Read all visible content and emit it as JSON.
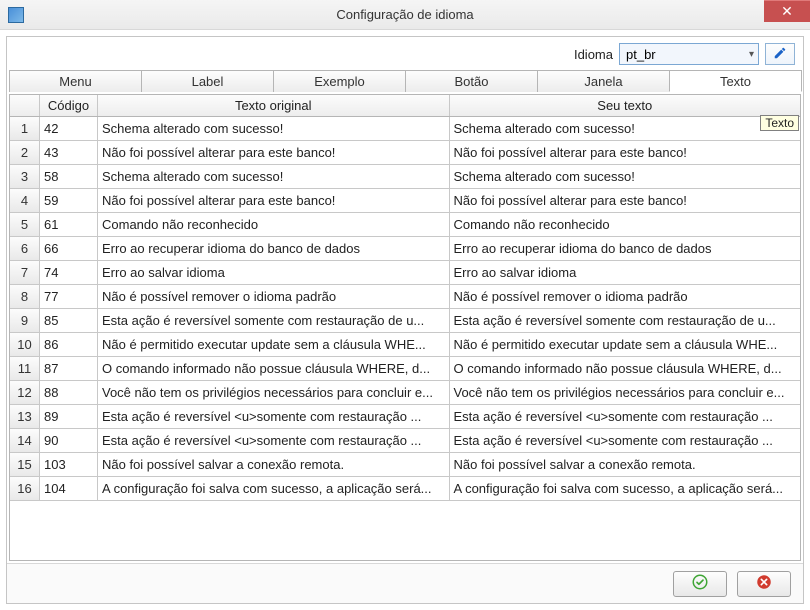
{
  "window": {
    "title": "Configuração de idioma"
  },
  "language": {
    "label": "Idioma",
    "selected": "pt_br"
  },
  "tabs": {
    "items": [
      {
        "label": "Menu"
      },
      {
        "label": "Label"
      },
      {
        "label": "Exemplo"
      },
      {
        "label": "Botão"
      },
      {
        "label": "Janela"
      },
      {
        "label": "Texto"
      }
    ],
    "activeIndex": 5
  },
  "table": {
    "headers": {
      "codigo": "Código",
      "original": "Texto original",
      "user": "Seu texto"
    },
    "tooltip": "Texto",
    "rows": [
      {
        "codigo": "42",
        "original": "Schema alterado com sucesso!",
        "user": "Schema alterado com sucesso!"
      },
      {
        "codigo": "43",
        "original": "Não foi possível alterar para este banco!",
        "user": "Não foi possível alterar para este banco!"
      },
      {
        "codigo": "58",
        "original": "Schema alterado com sucesso!",
        "user": "Schema alterado com sucesso!"
      },
      {
        "codigo": "59",
        "original": "Não foi possível alterar para este banco!",
        "user": "Não foi possível alterar para este banco!"
      },
      {
        "codigo": "61",
        "original": "Comando não reconhecido",
        "user": "Comando não reconhecido"
      },
      {
        "codigo": "66",
        "original": "Erro ao recuperar idioma do banco de dados",
        "user": "Erro ao recuperar idioma do banco de dados"
      },
      {
        "codigo": "74",
        "original": "Erro ao salvar idioma",
        "user": "Erro ao salvar idioma"
      },
      {
        "codigo": "77",
        "original": "Não é possível remover o idioma padrão",
        "user": "Não é possível remover o idioma padrão"
      },
      {
        "codigo": "85",
        "original": "Esta ação é reversível somente com restauração de u...",
        "user": "Esta ação é reversível somente com restauração de u..."
      },
      {
        "codigo": "86",
        "original": "Não é permitido executar update sem a cláusula WHE...",
        "user": "Não é permitido executar update sem a cláusula WHE..."
      },
      {
        "codigo": "87",
        "original": "O comando informado não possue cláusula WHERE, d...",
        "user": "O comando informado não possue cláusula WHERE, d..."
      },
      {
        "codigo": "88",
        "original": "Você não tem os privilégios necessários para concluir e...",
        "user": "Você não tem os privilégios necessários para concluir e..."
      },
      {
        "codigo": "89",
        "original": "Esta ação é reversível <u>somente com restauração ...",
        "user": "Esta ação é reversível <u>somente com restauração ..."
      },
      {
        "codigo": "90",
        "original": "Esta ação é reversível <u>somente com restauração ...",
        "user": "Esta ação é reversível <u>somente com restauração ..."
      },
      {
        "codigo": "103",
        "original": "Não foi possível salvar a conexão remota.",
        "user": "Não foi possível salvar a conexão remota."
      },
      {
        "codigo": "104",
        "original": "A configuração foi salva com sucesso, a aplicação será...",
        "user": "A configuração foi salva com sucesso, a aplicação será..."
      }
    ]
  },
  "colors": {
    "accent": "#3a8ee6",
    "close_bg": "#c75050",
    "ok_icon": "#3fa535",
    "cancel_icon": "#d13b2e",
    "tooltip_bg": "#ffffe1",
    "grid_border": "#c8c8c8",
    "panel_border": "#b5b5b5",
    "select_border": "#7ba7d3"
  }
}
